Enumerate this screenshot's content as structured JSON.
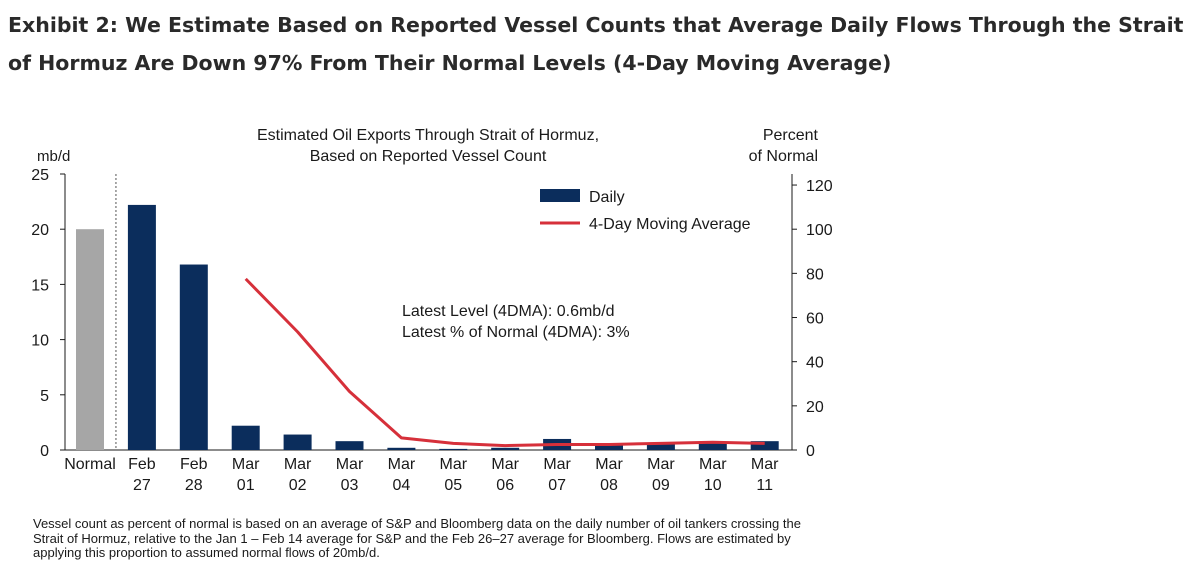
{
  "exhibit": {
    "title": "Exhibit 2: We Estimate Based on Reported Vessel Counts that Average Daily Flows Through the Strait of Hormuz Are Down 97% From Their Normal Levels (4-Day Moving Average)"
  },
  "chart_data": {
    "type": "bar",
    "title_lines": [
      "Estimated Oil Exports Through Strait of Hormuz,",
      "Based on Reported Vessel Count"
    ],
    "ylabel_left": "mb/d",
    "ylabel_right_lines": [
      "Percent",
      "of Normal"
    ],
    "categories": [
      [
        "Normal"
      ],
      [
        "Feb",
        "27"
      ],
      [
        "Feb",
        "28"
      ],
      [
        "Mar",
        "01"
      ],
      [
        "Mar",
        "02"
      ],
      [
        "Mar",
        "03"
      ],
      [
        "Mar",
        "04"
      ],
      [
        "Mar",
        "05"
      ],
      [
        "Mar",
        "06"
      ],
      [
        "Mar",
        "07"
      ],
      [
        "Mar",
        "08"
      ],
      [
        "Mar",
        "09"
      ],
      [
        "Mar",
        "10"
      ],
      [
        "Mar",
        "11"
      ]
    ],
    "left_axis": {
      "min": 0,
      "max": 25,
      "ticks": [
        0,
        5,
        10,
        15,
        20,
        25
      ]
    },
    "right_axis": {
      "min": 0,
      "max": 125,
      "ticks": [
        0,
        20,
        40,
        60,
        80,
        100,
        120
      ]
    },
    "series": [
      {
        "name": "Normal",
        "kind": "bar",
        "color": "#a6a6a6",
        "values": [
          20,
          null,
          null,
          null,
          null,
          null,
          null,
          null,
          null,
          null,
          null,
          null,
          null,
          null
        ]
      },
      {
        "name": "Daily",
        "kind": "bar",
        "color": "#0b2d5c",
        "values": [
          null,
          22.2,
          16.8,
          2.2,
          1.4,
          0.8,
          0.2,
          0.1,
          0.2,
          1.0,
          0.5,
          0.6,
          0.7,
          0.8
        ]
      },
      {
        "name": "4-Day Moving Average",
        "kind": "line",
        "axis": "right",
        "color": "#d6303a",
        "values": [
          null,
          null,
          null,
          77.5,
          53.5,
          26.5,
          5.5,
          3.0,
          2.0,
          2.5,
          2.5,
          3.0,
          3.5,
          3.0
        ]
      }
    ],
    "legend": [
      {
        "label": "Daily",
        "kind": "bar",
        "color": "#0b2d5c"
      },
      {
        "label": "4-Day Moving Average",
        "kind": "line",
        "color": "#d6303a"
      }
    ],
    "legend_placement": "top-right",
    "annotations": [
      "Latest Level (4DMA): 0.6mb/d",
      "Latest % of Normal (4DMA): 3%"
    ],
    "separator_after_category": 0
  },
  "footnote": "Vessel count as percent of normal is based on an average of S&P and Bloomberg data on the daily number of oil tankers crossing the Strait of Hormuz, relative to the Jan 1 – Feb 14 average for S&P and the Feb 26–27 average for Bloomberg. Flows are estimated by applying this proportion to assumed normal flows of 20mb/d."
}
